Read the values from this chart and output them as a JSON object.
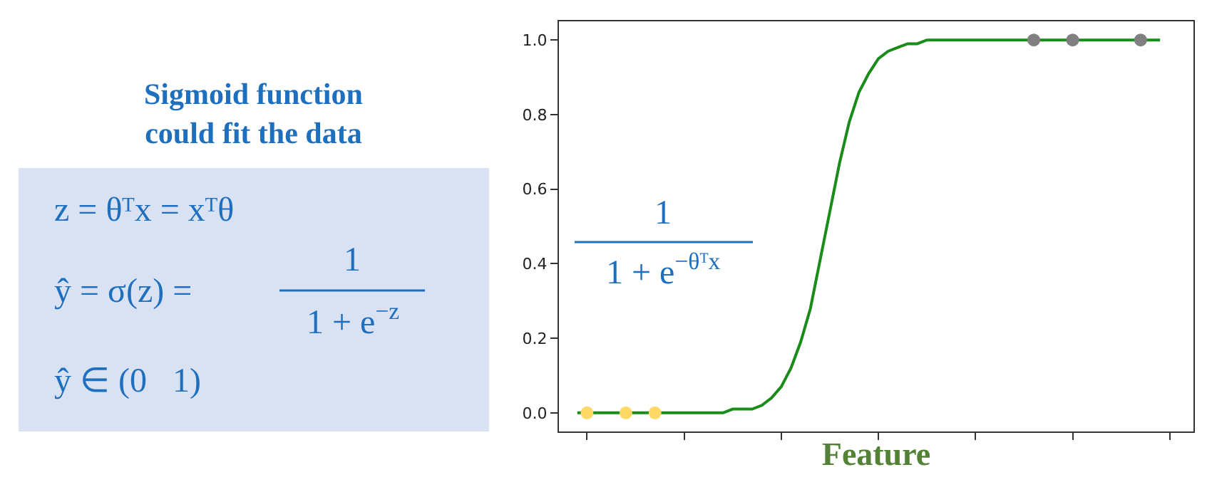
{
  "chart_data": [
    {
      "type": "other",
      "title": "Sigmoid function\ncould fit the data",
      "annotations": [
        "z = θᵀx = xᵀθ",
        "ŷ = σ(z) =",
        "1",
        "1 + e$^{−z}$",
        "ŷ ∈ (0   1)"
      ]
    },
    {
      "type": "line",
      "xlabel": "Feature",
      "tick_labels": "y",
      "annotations": [
        "1",
        "1 + e$^{−θᵀx}$"
      ],
      "categories": [
        null,
        null,
        null,
        null,
        null,
        null,
        null,
        null,
        null,
        null,
        null,
        null,
        null,
        null,
        null,
        null,
        null,
        null,
        null,
        null,
        null,
        null,
        null,
        null,
        null,
        null,
        null,
        null,
        null,
        null,
        null,
        null,
        null,
        null,
        null,
        null,
        null,
        null,
        null,
        null,
        null,
        null,
        null,
        null,
        null,
        null,
        null,
        null,
        null,
        null,
        null,
        null,
        null,
        null,
        null,
        null,
        null,
        null,
        null,
        null,
        null
      ],
      "ylim": [
        -0.05,
        1.05
      ],
      "yticks": [
        {
          "value": 0,
          "label": "0.0"
        },
        {
          "value": 0.2,
          "label": "0.2"
        },
        {
          "value": 0.4,
          "label": "0.4"
        },
        {
          "value": 0.6,
          "label": "0.6"
        },
        {
          "value": 0.8,
          "label": "0.8"
        },
        {
          "value": 1,
          "label": "1.0"
        }
      ],
      "series": [
        {
          "type": "line",
          "marker": "none",
          "line_style": "solid",
          "color": "#1a8c1a",
          "values": [
            0,
            0,
            0,
            0,
            0,
            0,
            0,
            0,
            0,
            0,
            0,
            0,
            0,
            0,
            0,
            0,
            0.01,
            0.01,
            0.01,
            0.02,
            0.04,
            0.07,
            0.12,
            0.19,
            0.28,
            0.41,
            0.54,
            0.67,
            0.78,
            0.86,
            0.91,
            0.95,
            0.97,
            0.98,
            0.99,
            0.99,
            1,
            1,
            1,
            1,
            1,
            1,
            1,
            1,
            1,
            1,
            1,
            1,
            1,
            1,
            1,
            1,
            1,
            1,
            1,
            1,
            1,
            1,
            1,
            1,
            1
          ]
        },
        {
          "type": "scatter",
          "marker": "circle",
          "color": "#ffd966",
          "values": [
            null,
            0,
            null,
            null,
            null,
            0,
            null,
            null,
            0,
            null,
            null,
            null,
            null,
            null,
            null,
            null,
            null,
            null,
            null,
            null,
            null,
            null,
            null,
            null,
            null,
            null,
            null,
            null,
            null,
            null,
            null,
            null,
            null,
            null,
            null,
            null,
            null,
            null,
            null,
            null,
            null,
            null,
            null,
            null,
            null,
            null,
            null,
            null,
            null,
            null,
            null,
            null,
            null,
            null,
            null,
            null,
            null,
            null,
            null,
            null,
            null
          ]
        },
        {
          "type": "scatter",
          "marker": "circle",
          "color": "#808080",
          "values": [
            null,
            null,
            null,
            null,
            null,
            null,
            null,
            null,
            null,
            null,
            null,
            null,
            null,
            null,
            null,
            null,
            null,
            null,
            null,
            null,
            null,
            null,
            null,
            null,
            null,
            null,
            null,
            null,
            null,
            null,
            null,
            null,
            null,
            null,
            null,
            null,
            null,
            null,
            null,
            null,
            null,
            null,
            null,
            null,
            null,
            null,
            null,
            1,
            null,
            null,
            null,
            1,
            null,
            null,
            null,
            null,
            null,
            null,
            1,
            null,
            null
          ]
        }
      ]
    }
  ]
}
